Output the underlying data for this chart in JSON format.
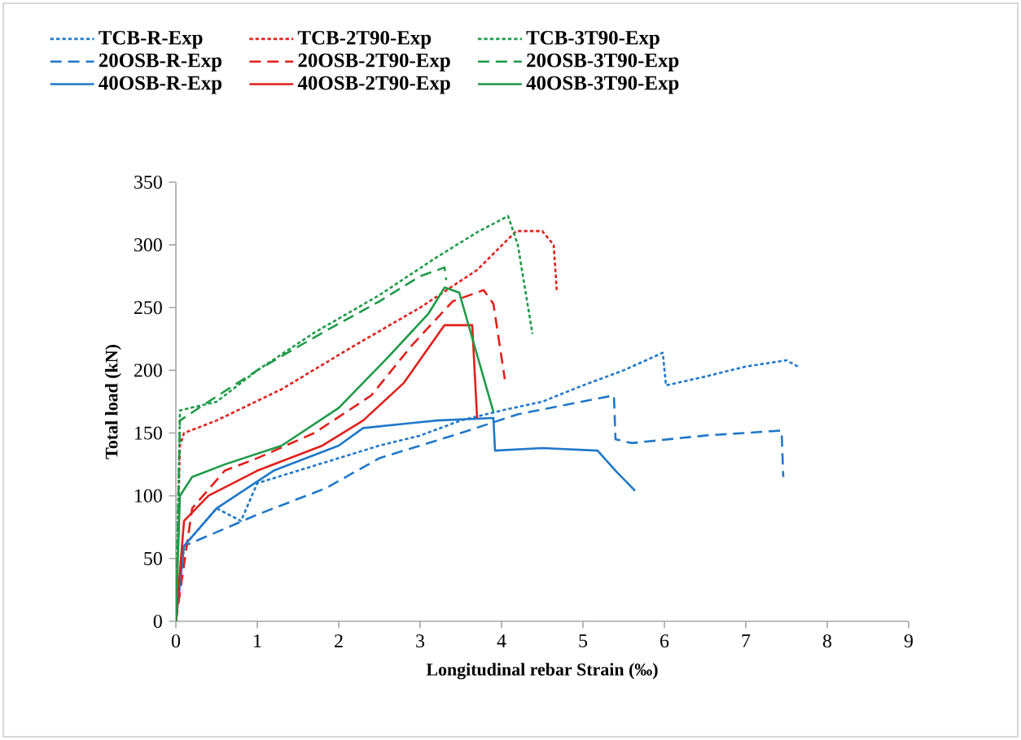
{
  "chart_data": {
    "type": "line",
    "xlabel": "Longitudinal rebar Strain (‰)",
    "ylabel": "Total load (kN)",
    "xlim": [
      0,
      9
    ],
    "ylim": [
      0,
      350
    ],
    "xticks": [
      0,
      1,
      2,
      3,
      4,
      5,
      6,
      7,
      8,
      9
    ],
    "yticks": [
      0,
      50,
      100,
      150,
      200,
      250,
      300,
      350
    ],
    "grid": false,
    "legend": "top",
    "series": [
      {
        "name": "TCB-R-Exp",
        "color": "#1f78c8",
        "line_style": "dotted",
        "x": [
          0,
          0.1,
          0.5,
          0.8,
          1.0,
          1.5,
          2.0,
          2.5,
          3.0,
          3.5,
          4.0,
          4.5,
          5.0,
          5.5,
          5.98,
          6.02,
          6.5,
          7.0,
          7.5,
          7.64
        ],
        "values": [
          0,
          60,
          90,
          80,
          110,
          120,
          130,
          140,
          148,
          160,
          168,
          175,
          188,
          200,
          214,
          188,
          195,
          203,
          208,
          203
        ]
      },
      {
        "name": "TCB-2T90-Exp",
        "color": "#e0201b",
        "line_style": "dotted",
        "x": [
          0,
          0.05,
          0.1,
          0.5,
          1.3,
          2.2,
          3.0,
          3.7,
          4.18,
          4.5,
          4.64,
          4.68
        ],
        "values": [
          0,
          140,
          150,
          160,
          185,
          220,
          250,
          280,
          311,
          311,
          300,
          262
        ]
      },
      {
        "name": "TCB-3T90-Exp",
        "color": "#1e9a48",
        "line_style": "dotted",
        "x": [
          0,
          0.05,
          0.5,
          1.0,
          1.7,
          2.5,
          3.2,
          3.7,
          4.08,
          4.2,
          4.38
        ],
        "values": [
          0,
          168,
          175,
          200,
          230,
          260,
          290,
          310,
          323,
          300,
          229
        ]
      },
      {
        "name": "20OSB-R-Exp",
        "color": "#1f78c8",
        "line_style": "dashed",
        "x": [
          0,
          0.1,
          0.5,
          1.0,
          1.84,
          2.5,
          3.5,
          4.2,
          5.38,
          5.4,
          5.6,
          6.5,
          7.44,
          7.46
        ],
        "values": [
          0,
          60,
          71,
          85,
          106,
          130,
          150,
          165,
          180,
          145,
          142,
          148,
          152,
          115
        ]
      },
      {
        "name": "20OSB-2T90-Exp",
        "color": "#e0201b",
        "line_style": "dashed",
        "x": [
          0,
          0.2,
          0.6,
          1.0,
          1.7,
          2.4,
          2.9,
          3.4,
          3.78,
          3.9,
          4.04
        ],
        "values": [
          0,
          90,
          120,
          130,
          150,
          180,
          220,
          255,
          264,
          253,
          193
        ]
      },
      {
        "name": "20OSB-3T90-Exp",
        "color": "#1e9a48",
        "line_style": "dashed",
        "x": [
          0,
          0.05,
          0.4,
          1.0,
          1.8,
          2.5,
          3.0,
          3.3,
          3.32
        ],
        "values": [
          0,
          160,
          175,
          200,
          230,
          255,
          275,
          282,
          272
        ]
      },
      {
        "name": "40OSB-R-Exp",
        "color": "#1f78c8",
        "line_style": "solid",
        "x": [
          0,
          0.1,
          0.5,
          1.2,
          2.0,
          2.3,
          3.2,
          3.9,
          3.92,
          4.5,
          5.18,
          5.4,
          5.64
        ],
        "values": [
          0,
          60,
          90,
          120,
          140,
          154,
          160,
          162,
          136,
          138,
          136,
          120,
          104
        ]
      },
      {
        "name": "40OSB-2T90-Exp",
        "color": "#e0201b",
        "line_style": "solid",
        "x": [
          0,
          0.1,
          0.4,
          1.0,
          1.8,
          2.3,
          2.8,
          3.3,
          3.64,
          3.7
        ],
        "values": [
          0,
          80,
          100,
          120,
          140,
          160,
          190,
          236,
          236,
          162
        ]
      },
      {
        "name": "40OSB-3T90-Exp",
        "color": "#1e9a48",
        "line_style": "solid",
        "x": [
          0,
          0.05,
          0.2,
          0.6,
          1.3,
          2.0,
          2.6,
          3.1,
          3.3,
          3.48,
          3.9
        ],
        "values": [
          0,
          100,
          115,
          125,
          140,
          170,
          210,
          245,
          266,
          262,
          167
        ]
      }
    ]
  }
}
